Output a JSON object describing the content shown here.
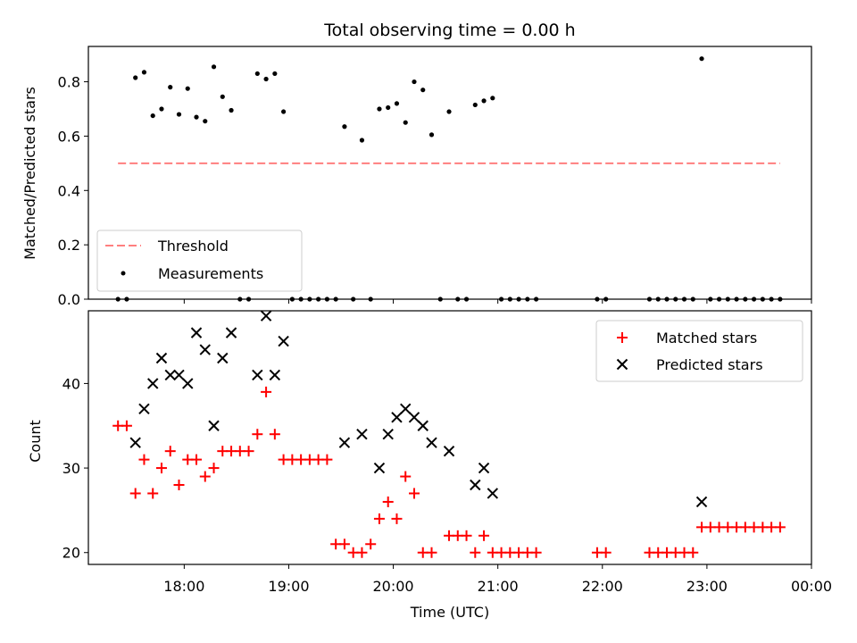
{
  "chart_data": [
    {
      "type": "scatter",
      "title": "Total observing time = 0.00 h",
      "ylabel": "Matched/Predicted stars",
      "xlabel": "",
      "ylim": [
        0,
        0.93
      ],
      "yticks": [
        0.0,
        0.2,
        0.4,
        0.6,
        0.8
      ],
      "ytick_labels": [
        "0.0",
        "0.2",
        "0.4",
        "0.6",
        "0.8"
      ],
      "legend_position": "lower-left",
      "threshold": {
        "name": "Threshold",
        "value": 0.5,
        "x_start": "17:22",
        "x_end": "23:42",
        "color": "#ff7f7f"
      },
      "series": [
        {
          "name": "Measurements",
          "color": "#000000",
          "x": [
            "17:22",
            "17:27",
            "17:32",
            "17:37",
            "17:42",
            "17:47",
            "17:52",
            "17:57",
            "18:02",
            "18:07",
            "18:12",
            "18:17",
            "18:22",
            "18:27",
            "18:32",
            "18:37",
            "18:42",
            "18:47",
            "18:52",
            "18:57",
            "19:02",
            "19:07",
            "19:12",
            "19:17",
            "19:22",
            "19:27",
            "19:32",
            "19:37",
            "19:42",
            "19:47",
            "19:52",
            "19:57",
            "20:02",
            "20:07",
            "20:12",
            "20:17",
            "20:22",
            "20:27",
            "20:32",
            "20:37",
            "20:42",
            "20:47",
            "20:52",
            "20:57",
            "21:02",
            "21:07",
            "21:12",
            "21:17",
            "21:22",
            "21:57",
            "22:02",
            "22:27",
            "22:32",
            "22:37",
            "22:42",
            "22:47",
            "22:52",
            "22:57",
            "23:02",
            "23:07",
            "23:12",
            "23:17",
            "23:22",
            "23:27",
            "23:32",
            "23:37",
            "23:42"
          ],
          "y": [
            0,
            0,
            0.815,
            0.835,
            0.675,
            0.7,
            0.78,
            0.68,
            0.775,
            0.67,
            0.655,
            0.855,
            0.745,
            0.695,
            0,
            0,
            0.83,
            0.81,
            0.83,
            0.69,
            0,
            0,
            0,
            0,
            0,
            0,
            0.635,
            0,
            0.585,
            0,
            0.7,
            0.705,
            0.72,
            0.65,
            0.8,
            0.77,
            0.605,
            0,
            0.69,
            0,
            0,
            0.715,
            0.73,
            0.74,
            0,
            0,
            0,
            0,
            0,
            0,
            0,
            0,
            0,
            0,
            0,
            0,
            0,
            0.885,
            0,
            0,
            0,
            0,
            0,
            0,
            0,
            0,
            0
          ]
        }
      ]
    },
    {
      "type": "scatter",
      "title": "",
      "ylabel": "Count",
      "xlabel": "Time (UTC)",
      "ylim": [
        18.6,
        48.6
      ],
      "yticks": [
        20,
        30,
        40
      ],
      "ytick_labels": [
        "20",
        "30",
        "40"
      ],
      "xlim": [
        "17:05",
        "24:00"
      ],
      "xticks": [
        "18:00",
        "19:00",
        "20:00",
        "21:00",
        "22:00",
        "23:00",
        "24:00"
      ],
      "xtick_labels": [
        "18:00",
        "19:00",
        "20:00",
        "21:00",
        "22:00",
        "23:00",
        "00:00"
      ],
      "legend_position": "upper-right",
      "x": [
        "17:22",
        "17:27",
        "17:32",
        "17:37",
        "17:42",
        "17:47",
        "17:52",
        "17:57",
        "18:02",
        "18:07",
        "18:12",
        "18:17",
        "18:22",
        "18:27",
        "18:32",
        "18:37",
        "18:42",
        "18:47",
        "18:52",
        "18:57",
        "19:02",
        "19:07",
        "19:12",
        "19:17",
        "19:22",
        "19:27",
        "19:32",
        "19:37",
        "19:42",
        "19:47",
        "19:52",
        "19:57",
        "20:02",
        "20:07",
        "20:12",
        "20:17",
        "20:22",
        "20:27",
        "20:32",
        "20:37",
        "20:42",
        "20:47",
        "20:52",
        "20:57",
        "21:02",
        "21:07",
        "21:12",
        "21:17",
        "21:22",
        "21:57",
        "22:02",
        "22:27",
        "22:32",
        "22:37",
        "22:42",
        "22:47",
        "22:52",
        "22:57",
        "23:02",
        "23:07",
        "23:12",
        "23:17",
        "23:22",
        "23:27",
        "23:32",
        "23:37",
        "23:42"
      ],
      "series": [
        {
          "name": "Matched stars",
          "color": "#ff0000",
          "marker": "plus",
          "values": [
            35,
            35,
            27,
            31,
            27,
            30,
            32,
            28,
            31,
            31,
            29,
            30,
            32,
            32,
            32,
            32,
            34,
            39,
            34,
            31,
            31,
            31,
            31,
            31,
            31,
            21,
            21,
            20,
            20,
            21,
            24,
            26,
            24,
            29,
            27,
            20,
            20,
            null,
            22,
            22,
            22,
            20,
            22,
            20,
            20,
            20,
            20,
            20,
            20,
            20,
            20,
            20,
            20,
            20,
            20,
            20,
            20,
            23,
            23,
            23,
            23,
            23,
            23,
            23,
            23,
            23,
            23
          ]
        },
        {
          "name": "Predicted stars",
          "color": "#000000",
          "marker": "x",
          "values": [
            null,
            null,
            33,
            37,
            40,
            43,
            41,
            41,
            40,
            46,
            44,
            35,
            43,
            46,
            null,
            null,
            41,
            48,
            41,
            45,
            null,
            null,
            null,
            null,
            null,
            null,
            33,
            null,
            34,
            null,
            30,
            34,
            36,
            37,
            36,
            35,
            33,
            null,
            32,
            null,
            null,
            28,
            30,
            27,
            null,
            null,
            null,
            null,
            null,
            null,
            null,
            null,
            null,
            null,
            null,
            null,
            null,
            26,
            null,
            null,
            null,
            null,
            null,
            null,
            null,
            null,
            null
          ]
        }
      ]
    }
  ]
}
